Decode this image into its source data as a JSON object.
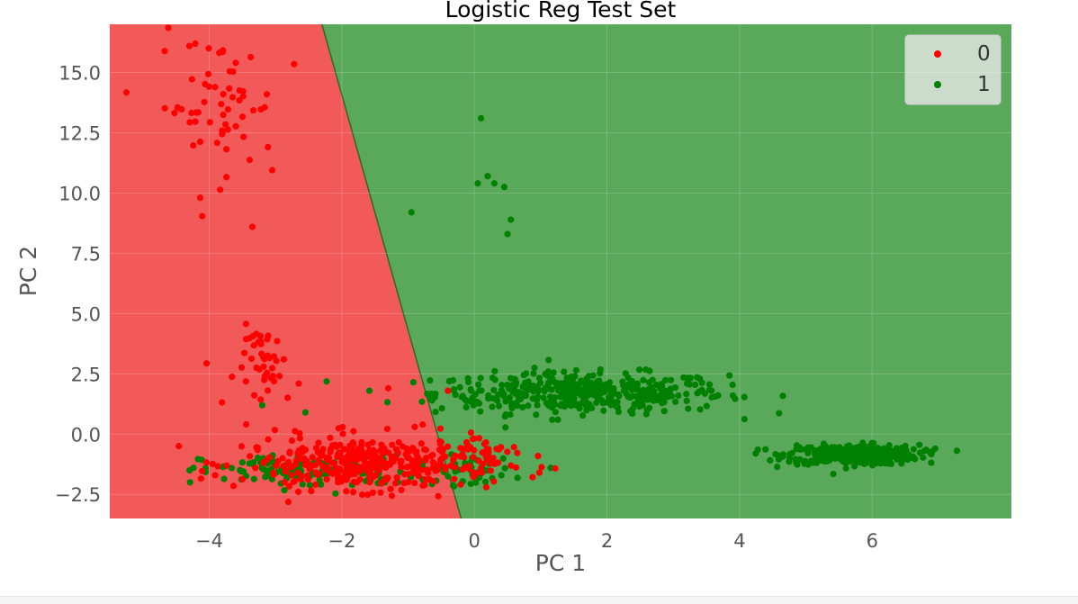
{
  "chart_data": {
    "type": "scatter",
    "title": "Logistic Reg Test Set",
    "xlabel": "PC 1",
    "ylabel": "PC 2",
    "xlim": [
      -5.5,
      8.1
    ],
    "ylim": [
      -3.5,
      17.0
    ],
    "xticks": [
      -4,
      -2,
      0,
      2,
      4,
      6
    ],
    "xtick_labels": [
      "−4",
      "−2",
      "0",
      "2",
      "4",
      "6"
    ],
    "yticks": [
      -2.5,
      0.0,
      2.5,
      5.0,
      7.5,
      10.0,
      12.5,
      15.0
    ],
    "ytick_labels": [
      "−2.5",
      "0.0",
      "2.5",
      "5.0",
      "7.5",
      "10.0",
      "12.5",
      "15.0"
    ],
    "grid": true,
    "legend_position": "top-right",
    "decision_regions": {
      "class_0_color": "#f25a5a",
      "class_1_color": "#5aa85a",
      "boundary": [
        [
          -2.3,
          17.0
        ],
        [
          -0.2,
          -3.5
        ]
      ]
    },
    "series": [
      {
        "name": "0",
        "color": "#ff0000",
        "clusters": [
          {
            "cx": -3.9,
            "cy": 13.6,
            "sx": 0.45,
            "sy": 1.45,
            "n": 60
          },
          {
            "cx": -3.1,
            "cy": 2.8,
            "sx": 0.25,
            "sy": 0.85,
            "n": 45
          },
          {
            "cx": -1.6,
            "cy": -1.2,
            "sx": 0.95,
            "sy": 0.55,
            "n": 380
          },
          {
            "cx": 0.2,
            "cy": -0.7,
            "sx": 0.35,
            "sy": 0.35,
            "n": 18
          }
        ],
        "points": [
          [
            -3.35,
            8.6
          ],
          [
            -3.05,
            10.95
          ],
          [
            -3.6,
            15.4
          ],
          [
            -4.3,
            16.1
          ],
          [
            -1.3,
            1.9
          ],
          [
            -0.4,
            1.8
          ],
          [
            -0.9,
            0.3
          ]
        ]
      },
      {
        "name": "1",
        "color": "#008000",
        "clusters": [
          {
            "cx": 1.6,
            "cy": 1.7,
            "sx": 1.1,
            "sy": 0.42,
            "n": 420
          },
          {
            "cx": 5.7,
            "cy": -0.85,
            "sx": 0.5,
            "sy": 0.2,
            "n": 380
          },
          {
            "cx": -2.5,
            "cy": -1.55,
            "sx": 0.8,
            "sy": 0.35,
            "n": 130
          },
          {
            "cx": -0.1,
            "cy": -1.5,
            "sx": 0.35,
            "sy": 0.3,
            "n": 45
          }
        ],
        "points": [
          [
            0.1,
            13.1
          ],
          [
            0.2,
            10.7
          ],
          [
            0.05,
            10.4
          ],
          [
            0.3,
            10.4
          ],
          [
            0.45,
            10.25
          ],
          [
            0.55,
            8.9
          ],
          [
            0.5,
            8.3
          ],
          [
            -0.95,
            9.2
          ],
          [
            -3.2,
            1.2
          ],
          [
            -2.55,
            0.9
          ],
          [
            1.15,
            -1.4
          ],
          [
            3.9,
            1.6
          ],
          [
            6.95,
            -0.6
          ]
        ]
      }
    ]
  }
}
